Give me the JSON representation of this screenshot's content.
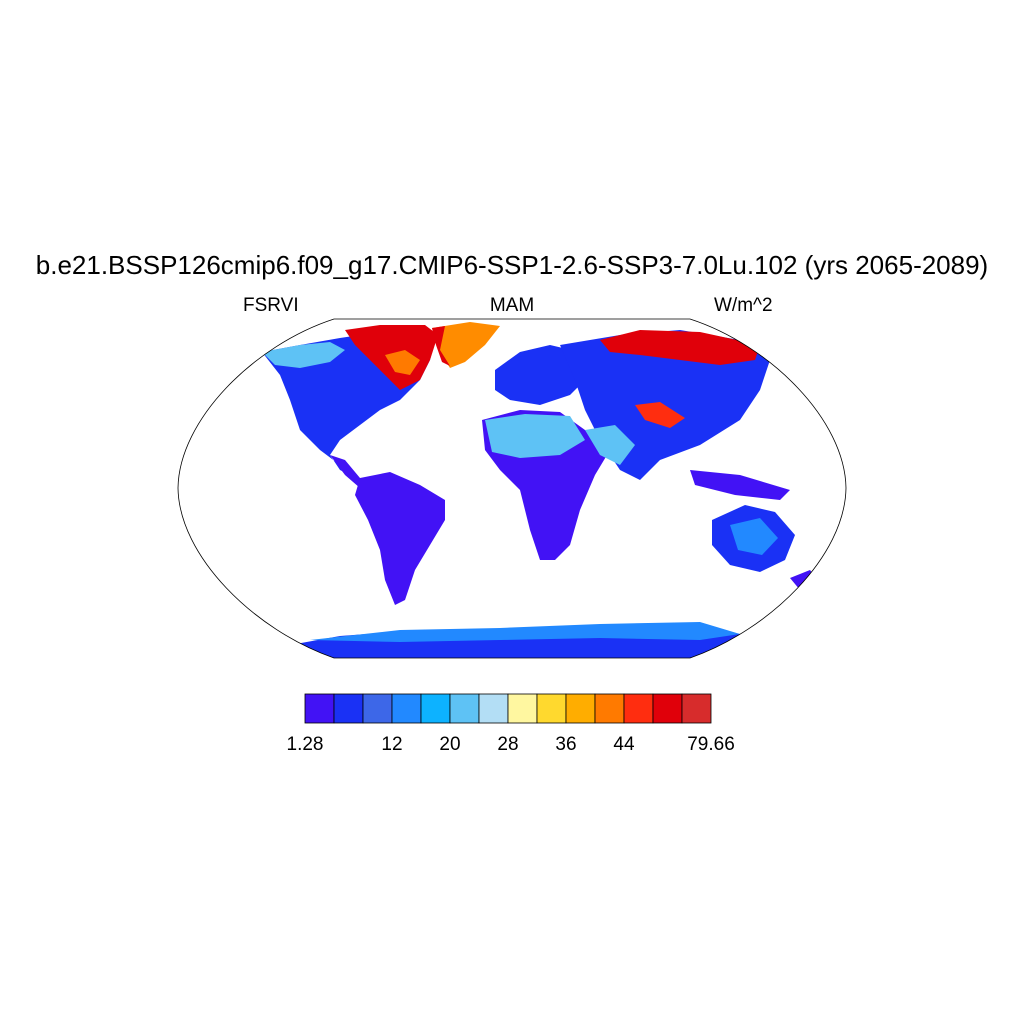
{
  "title": "b.e21.BSSP126cmip6.f09_g17.CMIP6-SSP1-2.6-SSP3-7.0Lu.102 (yrs 2065-2089)",
  "left_string": "FSRVI",
  "center_string": "MAM",
  "right_string": "W/m^2",
  "colorbar": {
    "colors": [
      "#4212f5",
      "#1a31f5",
      "#3d67e8",
      "#2289ff",
      "#0db2ff",
      "#5ec2f5",
      "#b3def5",
      "#fff7a0",
      "#ffd92e",
      "#ffad00",
      "#ff7a00",
      "#ff2d0f",
      "#e0000a",
      "#d72c2c"
    ],
    "labels": [
      "1.28",
      "12",
      "20",
      "28",
      "36",
      "44",
      "79.66"
    ],
    "label_positions": [
      0,
      3,
      5,
      7,
      9,
      11,
      14
    ]
  },
  "map": {
    "projection": "robinson",
    "colors": {
      "low": "#4212f5",
      "low2": "#1a31f5",
      "mid": "#2289ff",
      "light": "#5ec2f5",
      "sand": "#7fb0f0",
      "high": "#ff7a00",
      "very_high": "#e0000a",
      "greenland": "#ff8c00",
      "ocean": "#ffffff"
    }
  }
}
